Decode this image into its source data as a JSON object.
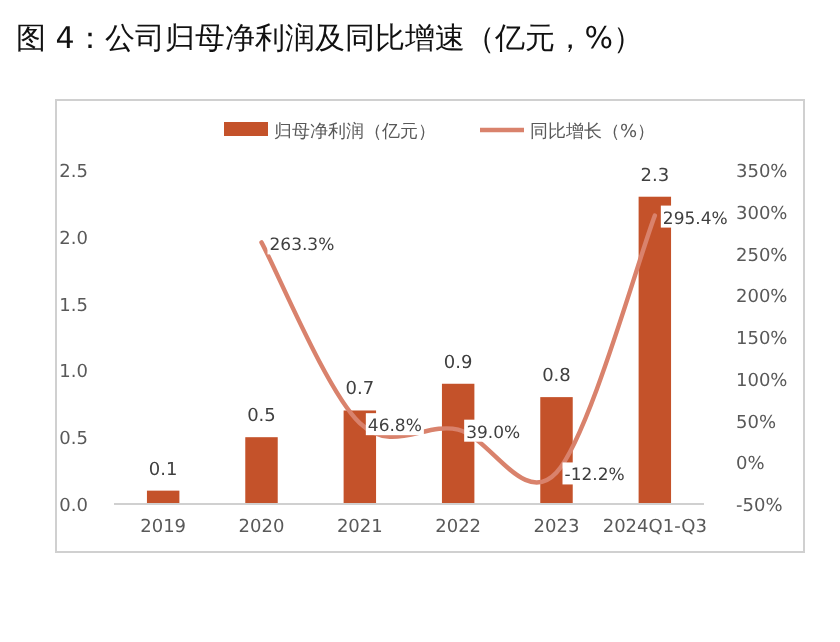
{
  "chart_data": {
    "type": "bar",
    "title": "图 4：公司归母净利润及同比增速（亿元，%）",
    "categories": [
      "2019",
      "2020",
      "2021",
      "2022",
      "2023",
      "2024Q1-Q3"
    ],
    "series": [
      {
        "name": "归母净利润（亿元）",
        "color": "#c4522a",
        "values": [
          0.1,
          0.5,
          0.7,
          0.9,
          0.8,
          2.3
        ],
        "value_labels": [
          "0.1",
          "0.5",
          "0.7",
          "0.9",
          "0.8",
          "2.3"
        ]
      },
      {
        "name": "同比增长（%）",
        "type": "line",
        "axis": "y2",
        "color": "#d9826c",
        "values": [
          null,
          263.3,
          46.8,
          39.0,
          -12.2,
          295.4
        ],
        "value_labels": [
          null,
          "263.3%",
          "46.8%",
          "39.0%",
          "-12.2%",
          "295.4%"
        ]
      }
    ],
    "ylim": [
      0,
      2.5
    ],
    "yticks": [
      {
        "value": 0,
        "label": "0.0"
      },
      {
        "value": 0.5,
        "label": "0.5"
      },
      {
        "value": 1,
        "label": "1.0"
      },
      {
        "value": 1.5,
        "label": "1.5"
      },
      {
        "value": 2,
        "label": "2.0"
      },
      {
        "value": 2.5,
        "label": "2.5"
      }
    ],
    "y2lim": [
      -50,
      350
    ],
    "y2ticks": [
      {
        "value": -50,
        "label": "-50%"
      },
      {
        "value": 0,
        "label": "0%"
      },
      {
        "value": 50,
        "label": "50%"
      },
      {
        "value": 100,
        "label": "100%"
      },
      {
        "value": 150,
        "label": "150%"
      },
      {
        "value": 200,
        "label": "200%"
      },
      {
        "value": 250,
        "label": "250%"
      },
      {
        "value": 300,
        "label": "300%"
      },
      {
        "value": 350,
        "label": "350%"
      }
    ],
    "grid": false,
    "legend": "top"
  }
}
